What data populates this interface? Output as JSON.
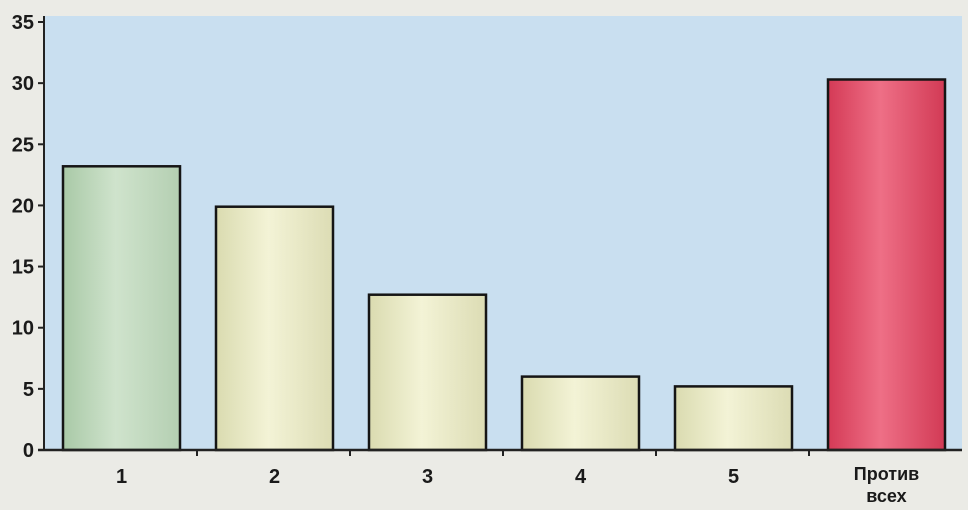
{
  "chart_data": {
    "type": "bar",
    "title": "",
    "xlabel": "",
    "ylabel": "",
    "categories": [
      "1",
      "2",
      "3",
      "4",
      "5",
      "Против всех"
    ],
    "values": [
      23.2,
      19.9,
      12.7,
      6.0,
      5.2,
      30.3
    ],
    "ylim": [
      0,
      35
    ],
    "yticks": [
      0,
      5,
      10,
      15,
      20,
      25,
      30,
      35
    ],
    "grid": false,
    "legend": "none",
    "colors": {
      "plot_background": "#c9dff0",
      "page_background": "#ebebe6",
      "bar_green": "#bcd6ba",
      "bar_cream": "#e6e6c0",
      "bar_red": "#e0445f",
      "axis": "#222222",
      "bar_outline": "#151515"
    }
  }
}
